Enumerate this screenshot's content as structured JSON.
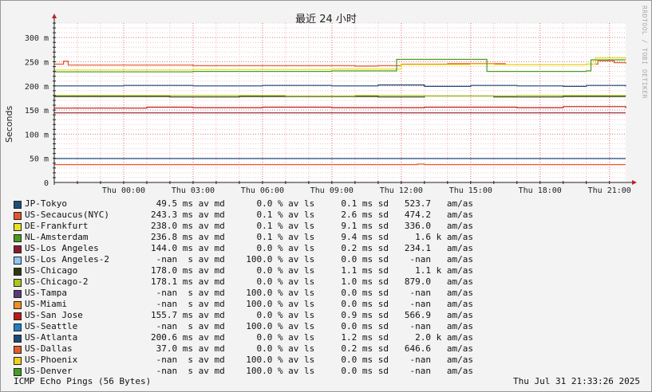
{
  "header": {
    "title": "最近 24 小时",
    "watermark": "RRDTOOL / TOBI OETIKER"
  },
  "footer": {
    "left": "ICMP Echo Pings (56 Bytes)",
    "right": "Thu Jul 31 21:33:26 2025"
  },
  "legend": [
    {
      "name": "JP-Tokyo",
      "color": "#1f4e79",
      "stats": " 49.5 ms av md      0.0 % av ls     0.1 ms sd   523.7   am/as"
    },
    {
      "name": "US-Secaucus(NYC)",
      "color": "#e8542b",
      "stats": "243.3 ms av md      0.1 % av ls     2.6 ms sd   474.2   am/as"
    },
    {
      "name": "DE-Frankfurt",
      "color": "#e8e020",
      "stats": "238.0 ms av md      0.1 % av ls     9.1 ms sd   336.0   am/as"
    },
    {
      "name": "NL-Amsterdam",
      "color": "#4a9a1e",
      "stats": "236.8 ms av md      0.1 % av ls     9.4 ms sd     1.6 k am/as"
    },
    {
      "name": "US-Los Angeles",
      "color": "#8b1a2e",
      "stats": "144.0 ms av md      0.0 % av ls     0.2 ms sd   234.1   am/as"
    },
    {
      "name": "US-Los Angeles-2",
      "color": "#8ec8f0",
      "stats": " -nan  s av md    100.0 % av ls     0.0 ms sd    -nan   am/as"
    },
    {
      "name": "US-Chicago",
      "color": "#2f3a10",
      "stats": "178.0 ms av md      0.0 % av ls     1.1 ms sd     1.1 k am/as"
    },
    {
      "name": "US-Chicago-2",
      "color": "#a8c820",
      "stats": "178.1 ms av md      0.0 % av ls     1.0 ms sd   879.0   am/as"
    },
    {
      "name": "US-Tampa",
      "color": "#5a3a7a",
      "stats": " -nan  s av md    100.0 % av ls     0.0 ms sd    -nan   am/as"
    },
    {
      "name": "US-Miami",
      "color": "#f09020",
      "stats": " -nan  s av md    100.0 % av ls     0.0 ms sd    -nan   am/as"
    },
    {
      "name": "US-San Jose",
      "color": "#c01818",
      "stats": "155.7 ms av md      0.0 % av ls     0.9 ms sd   566.9   am/as"
    },
    {
      "name": "US-Seattle",
      "color": "#2080c8",
      "stats": " -nan  s av md    100.0 % av ls     0.0 ms sd    -nan   am/as"
    },
    {
      "name": "US-Atlanta",
      "color": "#1a4a7a",
      "stats": "200.6 ms av md      0.0 % av ls     1.2 ms sd     2.0 k am/as"
    },
    {
      "name": "US-Dallas",
      "color": "#e85a2a",
      "stats": " 37.0 ms av md      0.0 % av ls     0.2 ms sd   646.6   am/as"
    },
    {
      "name": "US-Phoenix",
      "color": "#f0d020",
      "stats": " -nan  s av md    100.0 % av ls     0.0 ms sd    -nan   am/as"
    },
    {
      "name": "US-Denver",
      "color": "#40a020",
      "stats": " -nan  s av md    100.0 % av ls     0.0 ms sd    -nan   am/as"
    }
  ],
  "chart_data": {
    "type": "line",
    "title": "最近 24 小时",
    "ylabel": "Seconds",
    "ylim": [
      0,
      330
    ],
    "yticks": [
      0,
      50,
      100,
      150,
      200,
      250,
      300
    ],
    "ytick_labels": [
      "0",
      "50 m",
      "100 m",
      "150 m",
      "200 m",
      "250 m",
      "300 m"
    ],
    "xlim": [
      -3,
      21.7
    ],
    "xticks": [
      0,
      3,
      6,
      9,
      12,
      15,
      18,
      21
    ],
    "xtick_labels": [
      "Thu 00:00",
      "Thu 03:00",
      "Thu 06:00",
      "Thu 09:00",
      "Thu 12:00",
      "Thu 15:00",
      "Thu 18:00",
      "Thu 21:00"
    ],
    "grid": true,
    "series": [
      {
        "name": "JP-Tokyo",
        "color": "#1f4e79",
        "points": [
          [
            -3,
            49.5
          ],
          [
            21.7,
            49.5
          ]
        ]
      },
      {
        "name": "US-Secaucus(NYC)",
        "color": "#e8542b",
        "points": [
          [
            -3,
            245
          ],
          [
            -2.6,
            251
          ],
          [
            -2.4,
            243
          ],
          [
            0,
            243
          ],
          [
            3,
            242
          ],
          [
            10,
            241
          ],
          [
            11,
            242
          ],
          [
            12,
            245
          ],
          [
            14,
            246
          ],
          [
            15,
            246
          ],
          [
            16.5,
            244
          ],
          [
            20,
            245
          ],
          [
            20.5,
            252
          ],
          [
            21.2,
            248
          ],
          [
            21.7,
            246
          ]
        ]
      },
      {
        "name": "DE-Frankfurt",
        "color": "#e8e020",
        "points": [
          [
            -3,
            233
          ],
          [
            0,
            233
          ],
          [
            3,
            234
          ],
          [
            9,
            235
          ],
          [
            10.5,
            235
          ],
          [
            12,
            244
          ],
          [
            13,
            244
          ],
          [
            15,
            245
          ],
          [
            16,
            244
          ],
          [
            20,
            245
          ],
          [
            20.4,
            258
          ],
          [
            21.7,
            256
          ]
        ]
      },
      {
        "name": "NL-Amsterdam",
        "color": "#4a9a1e",
        "points": [
          [
            -3,
            229
          ],
          [
            3,
            230
          ],
          [
            9,
            231
          ],
          [
            11.8,
            231
          ],
          [
            11.8,
            255
          ],
          [
            15.7,
            255
          ],
          [
            15.7,
            230
          ],
          [
            20,
            231
          ],
          [
            20.2,
            254
          ],
          [
            21.7,
            254
          ]
        ]
      },
      {
        "name": "US-Los Angeles",
        "color": "#8b1a2e",
        "points": [
          [
            -3,
            144
          ],
          [
            21.7,
            144
          ]
        ]
      },
      {
        "name": "US-Chicago",
        "color": "#2f3a10",
        "points": [
          [
            -3,
            178
          ],
          [
            2,
            177
          ],
          [
            5,
            178
          ],
          [
            8,
            178
          ],
          [
            11,
            177
          ],
          [
            13,
            179
          ],
          [
            16,
            177
          ],
          [
            19,
            178
          ],
          [
            21.7,
            178
          ]
        ]
      },
      {
        "name": "US-Chicago-2",
        "color": "#a8c820",
        "points": [
          [
            -3,
            180
          ],
          [
            1,
            180
          ],
          [
            4,
            180
          ],
          [
            7,
            179
          ],
          [
            10,
            180
          ],
          [
            13,
            179
          ],
          [
            17,
            180
          ],
          [
            21.7,
            179
          ]
        ]
      },
      {
        "name": "US-San Jose",
        "color": "#c01818",
        "points": [
          [
            -3,
            154
          ],
          [
            1,
            156
          ],
          [
            3,
            155
          ],
          [
            6,
            156
          ],
          [
            9,
            155
          ],
          [
            13,
            156
          ],
          [
            17,
            155
          ],
          [
            19,
            157
          ],
          [
            21.7,
            154
          ]
        ]
      },
      {
        "name": "US-Atlanta",
        "color": "#1a4a7a",
        "points": [
          [
            -3,
            200
          ],
          [
            0,
            201
          ],
          [
            3,
            200
          ],
          [
            6,
            201
          ],
          [
            9,
            200
          ],
          [
            11,
            202
          ],
          [
            13,
            199
          ],
          [
            15,
            201
          ],
          [
            17,
            200
          ],
          [
            19,
            199
          ],
          [
            20,
            201
          ],
          [
            21.7,
            199
          ]
        ]
      },
      {
        "name": "US-Dallas",
        "color": "#e85a2a",
        "points": [
          [
            -3,
            37
          ],
          [
            12.7,
            37
          ],
          [
            12.7,
            38
          ],
          [
            13,
            37
          ],
          [
            21.7,
            37
          ]
        ]
      }
    ]
  }
}
